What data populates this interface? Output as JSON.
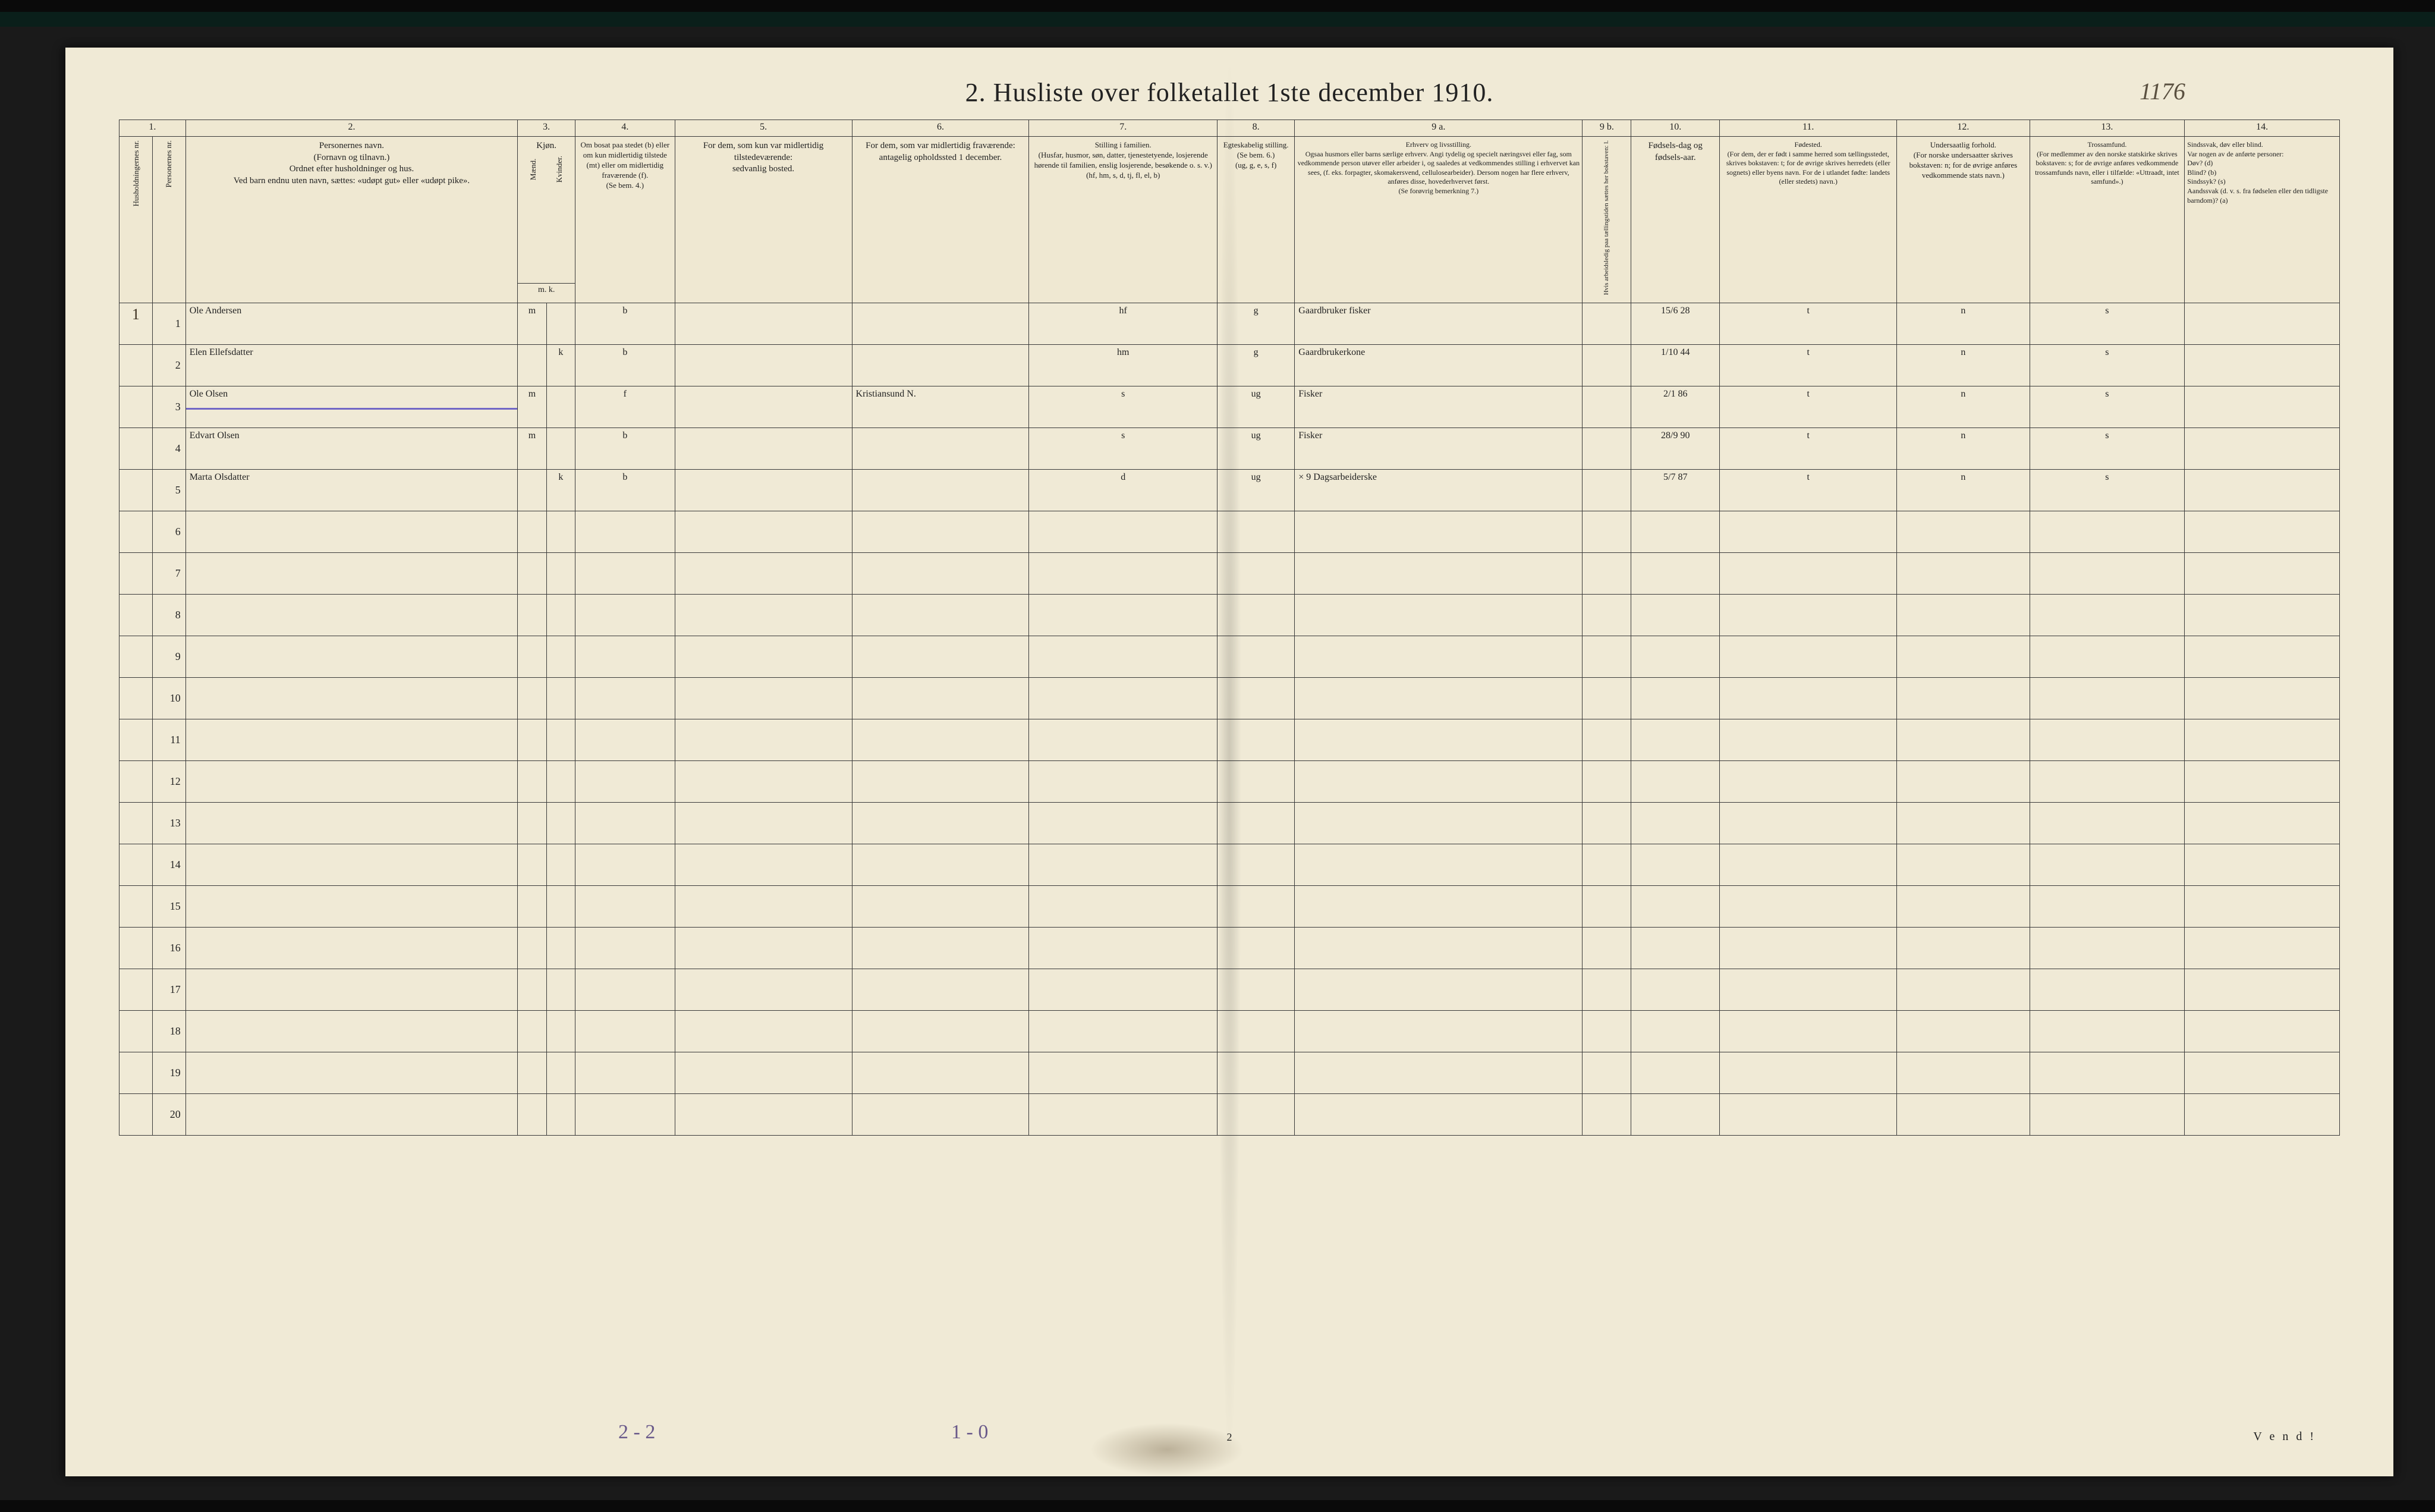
{
  "title": "2.  Husliste over folketallet 1ste december 1910.",
  "top_annotation": "1176",
  "header": {
    "nums": [
      "1.",
      "2.",
      "3.",
      "4.",
      "5.",
      "6.",
      "7.",
      "8.",
      "9 a.",
      "9 b.",
      "10.",
      "11.",
      "12.",
      "13.",
      "14."
    ],
    "c1a": "Husholdningernes nr.",
    "c1b": "Personernes nr.",
    "c2": "Personernes navn.\n(Fornavn og tilnavn.)\nOrdnet efter husholdninger og hus.\nVed barn endnu uten navn, sættes: «udøpt gut» eller «udøpt pike».",
    "c3": "Kjøn.",
    "c3a": "Mænd.",
    "c3b": "Kvinder.",
    "c3sub": "m.  k.",
    "c4": "Om bosat paa stedet (b) eller om kun midlertidig tilstede (mt) eller om midlertidig fraværende (f).\n(Se bem. 4.)",
    "c5": "For dem, som kun var midlertidig tilstedeværende:\nsedvanlig bosted.",
    "c6": "For dem, som var midlertidig fraværende:\nantagelig opholdssted 1 december.",
    "c7": "Stilling i familien.\n(Husfar, husmor, søn, datter, tjenestetyende, losjerende hørende til familien, enslig losjerende, besøkende o. s. v.)\n(hf, hm, s, d, tj, fl, el, b)",
    "c8": "Egteskabelig stilling.\n(Se bem. 6.)\n(ug, g, e, s, f)",
    "c9a": "Erhverv og livsstilling.\nOgsaa husmors eller barns særlige erhverv. Angi tydelig og specielt næringsvei eller fag, som vedkommende person utøver eller arbeider i, og saaledes at vedkommendes stilling i erhvervet kan sees, (f. eks. forpagter, skomakersvend, cellulosearbeider). Dersom nogen har flere erhverv, anføres disse, hovederhvervet først.\n(Se forøvrig bemerkning 7.)",
    "c9b": "Hvis arbeidsledig paa tællingstiden sættes her bokstaven: l.",
    "c10": "Fødsels-dag og fødsels-aar.",
    "c11": "Fødested.\n(For dem, der er født i samme herred som tællingsstedet, skrives bokstaven: t; for de øvrige skrives herredets (eller sognets) eller byens navn. For de i utlandet fødte: landets (eller stedets) navn.)",
    "c12": "Undersaatlig forhold.\n(For norske undersaatter skrives bokstaven: n; for de øvrige anføres vedkommende stats navn.)",
    "c13": "Trossamfund.\n(For medlemmer av den norske statskirke skrives bokstaven: s; for de øvrige anføres vedkommende trossamfunds navn, eller i tilfælde: «Uttraadt, intet samfund».)",
    "c14": "Sindssvak, døv eller blind.\nVar nogen av de anførte personer:\nDøv?  (d)\nBlind?  (b)\nSindssyk?  (s)\nAandssvak (d. v. s. fra fødselen eller den tidligste barndom)?  (a)"
  },
  "rows": [
    {
      "h": "1",
      "n": "1",
      "name": "Ole Andersen",
      "sex_m": "m",
      "sex_k": "",
      "bosat": "b",
      "mt": "",
      "fr": "",
      "stilling": "hf",
      "egte": "g",
      "erhverv": "Gaardbruker fisker",
      "led": "",
      "faar": "15/6 28",
      "fsted": "t",
      "und": "n",
      "tro": "s",
      "sind": ""
    },
    {
      "h": "",
      "n": "2",
      "name": "Elen Ellefsdatter",
      "sex_m": "",
      "sex_k": "k",
      "bosat": "b",
      "mt": "",
      "fr": "",
      "stilling": "hm",
      "egte": "g",
      "erhverv": "Gaardbrukerkone",
      "led": "",
      "faar": "1/10 44",
      "fsted": "t",
      "und": "n",
      "tro": "s",
      "sind": ""
    },
    {
      "h": "",
      "n": "3",
      "name": "Ole Olsen",
      "sex_m": "m",
      "sex_k": "",
      "bosat": "f",
      "mt": "",
      "fr": "Kristiansund N.",
      "stilling": "s",
      "egte": "ug",
      "erhverv": "Fisker",
      "led": "",
      "faar": "2/1 86",
      "fsted": "t",
      "und": "n",
      "tro": "s",
      "sind": "",
      "struck": true
    },
    {
      "h": "",
      "n": "4",
      "name": "Edvart Olsen",
      "sex_m": "m",
      "sex_k": "",
      "bosat": "b",
      "mt": "",
      "fr": "",
      "stilling": "s",
      "egte": "ug",
      "erhverv": "Fisker",
      "led": "",
      "faar": "28/9 90",
      "fsted": "t",
      "und": "n",
      "tro": "s",
      "sind": ""
    },
    {
      "h": "",
      "n": "5",
      "name": "Marta Olsdatter",
      "sex_m": "",
      "sex_k": "k",
      "bosat": "b",
      "mt": "",
      "fr": "",
      "stilling": "d",
      "egte": "ug",
      "erhverv": "× 9 Dagsarbeiderske",
      "led": "",
      "faar": "5/7 87",
      "fsted": "t",
      "und": "n",
      "tro": "s",
      "sind": ""
    }
  ],
  "blank_rows": [
    6,
    7,
    8,
    9,
    10,
    11,
    12,
    13,
    14,
    15,
    16,
    17,
    18,
    19,
    20
  ],
  "bottom": {
    "annot1": "2 - 2",
    "annot2": "1 - 0",
    "pagenum": "2",
    "vend": "V e n d !"
  },
  "colors": {
    "paper": "#f0ead6",
    "ink": "#222222",
    "handwriting": "#3a2f1f",
    "strike": "#3b2fbf"
  }
}
